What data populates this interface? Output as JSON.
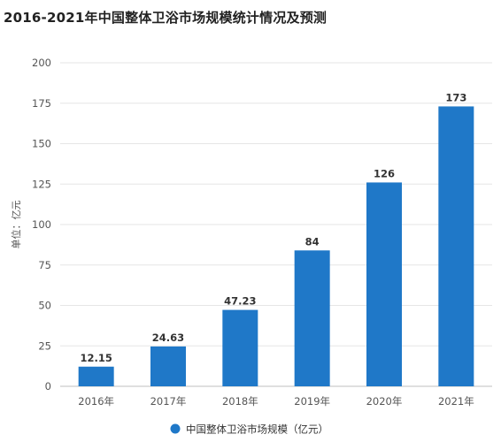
{
  "title": "2016-2021年中国整体卫浴市场规模统计情况及预测",
  "colors": {
    "bar": "#1f78c8",
    "grid": "#e6e6e6",
    "axis": "#bfbfbf"
  },
  "chart_data": {
    "type": "bar",
    "title": "2016-2021年中国整体卫浴市场规模统计情况及预测",
    "categories": [
      "2016年",
      "2017年",
      "2018年",
      "2019年",
      "2020年",
      "2021年"
    ],
    "series": [
      {
        "name": "中国整体卫浴市场规模（亿元）",
        "values": [
          12.15,
          24.63,
          47.23,
          84,
          126,
          173
        ]
      }
    ],
    "data_labels": [
      "12.15",
      "24.63",
      "47.23",
      "84",
      "126",
      "173"
    ],
    "xlabel": "",
    "ylabel": "单位：亿元",
    "ylim": [
      0,
      200
    ],
    "yticks": [
      0,
      25,
      50,
      75,
      100,
      125,
      150,
      175,
      200
    ],
    "grid": true,
    "legend_position": "bottom"
  }
}
